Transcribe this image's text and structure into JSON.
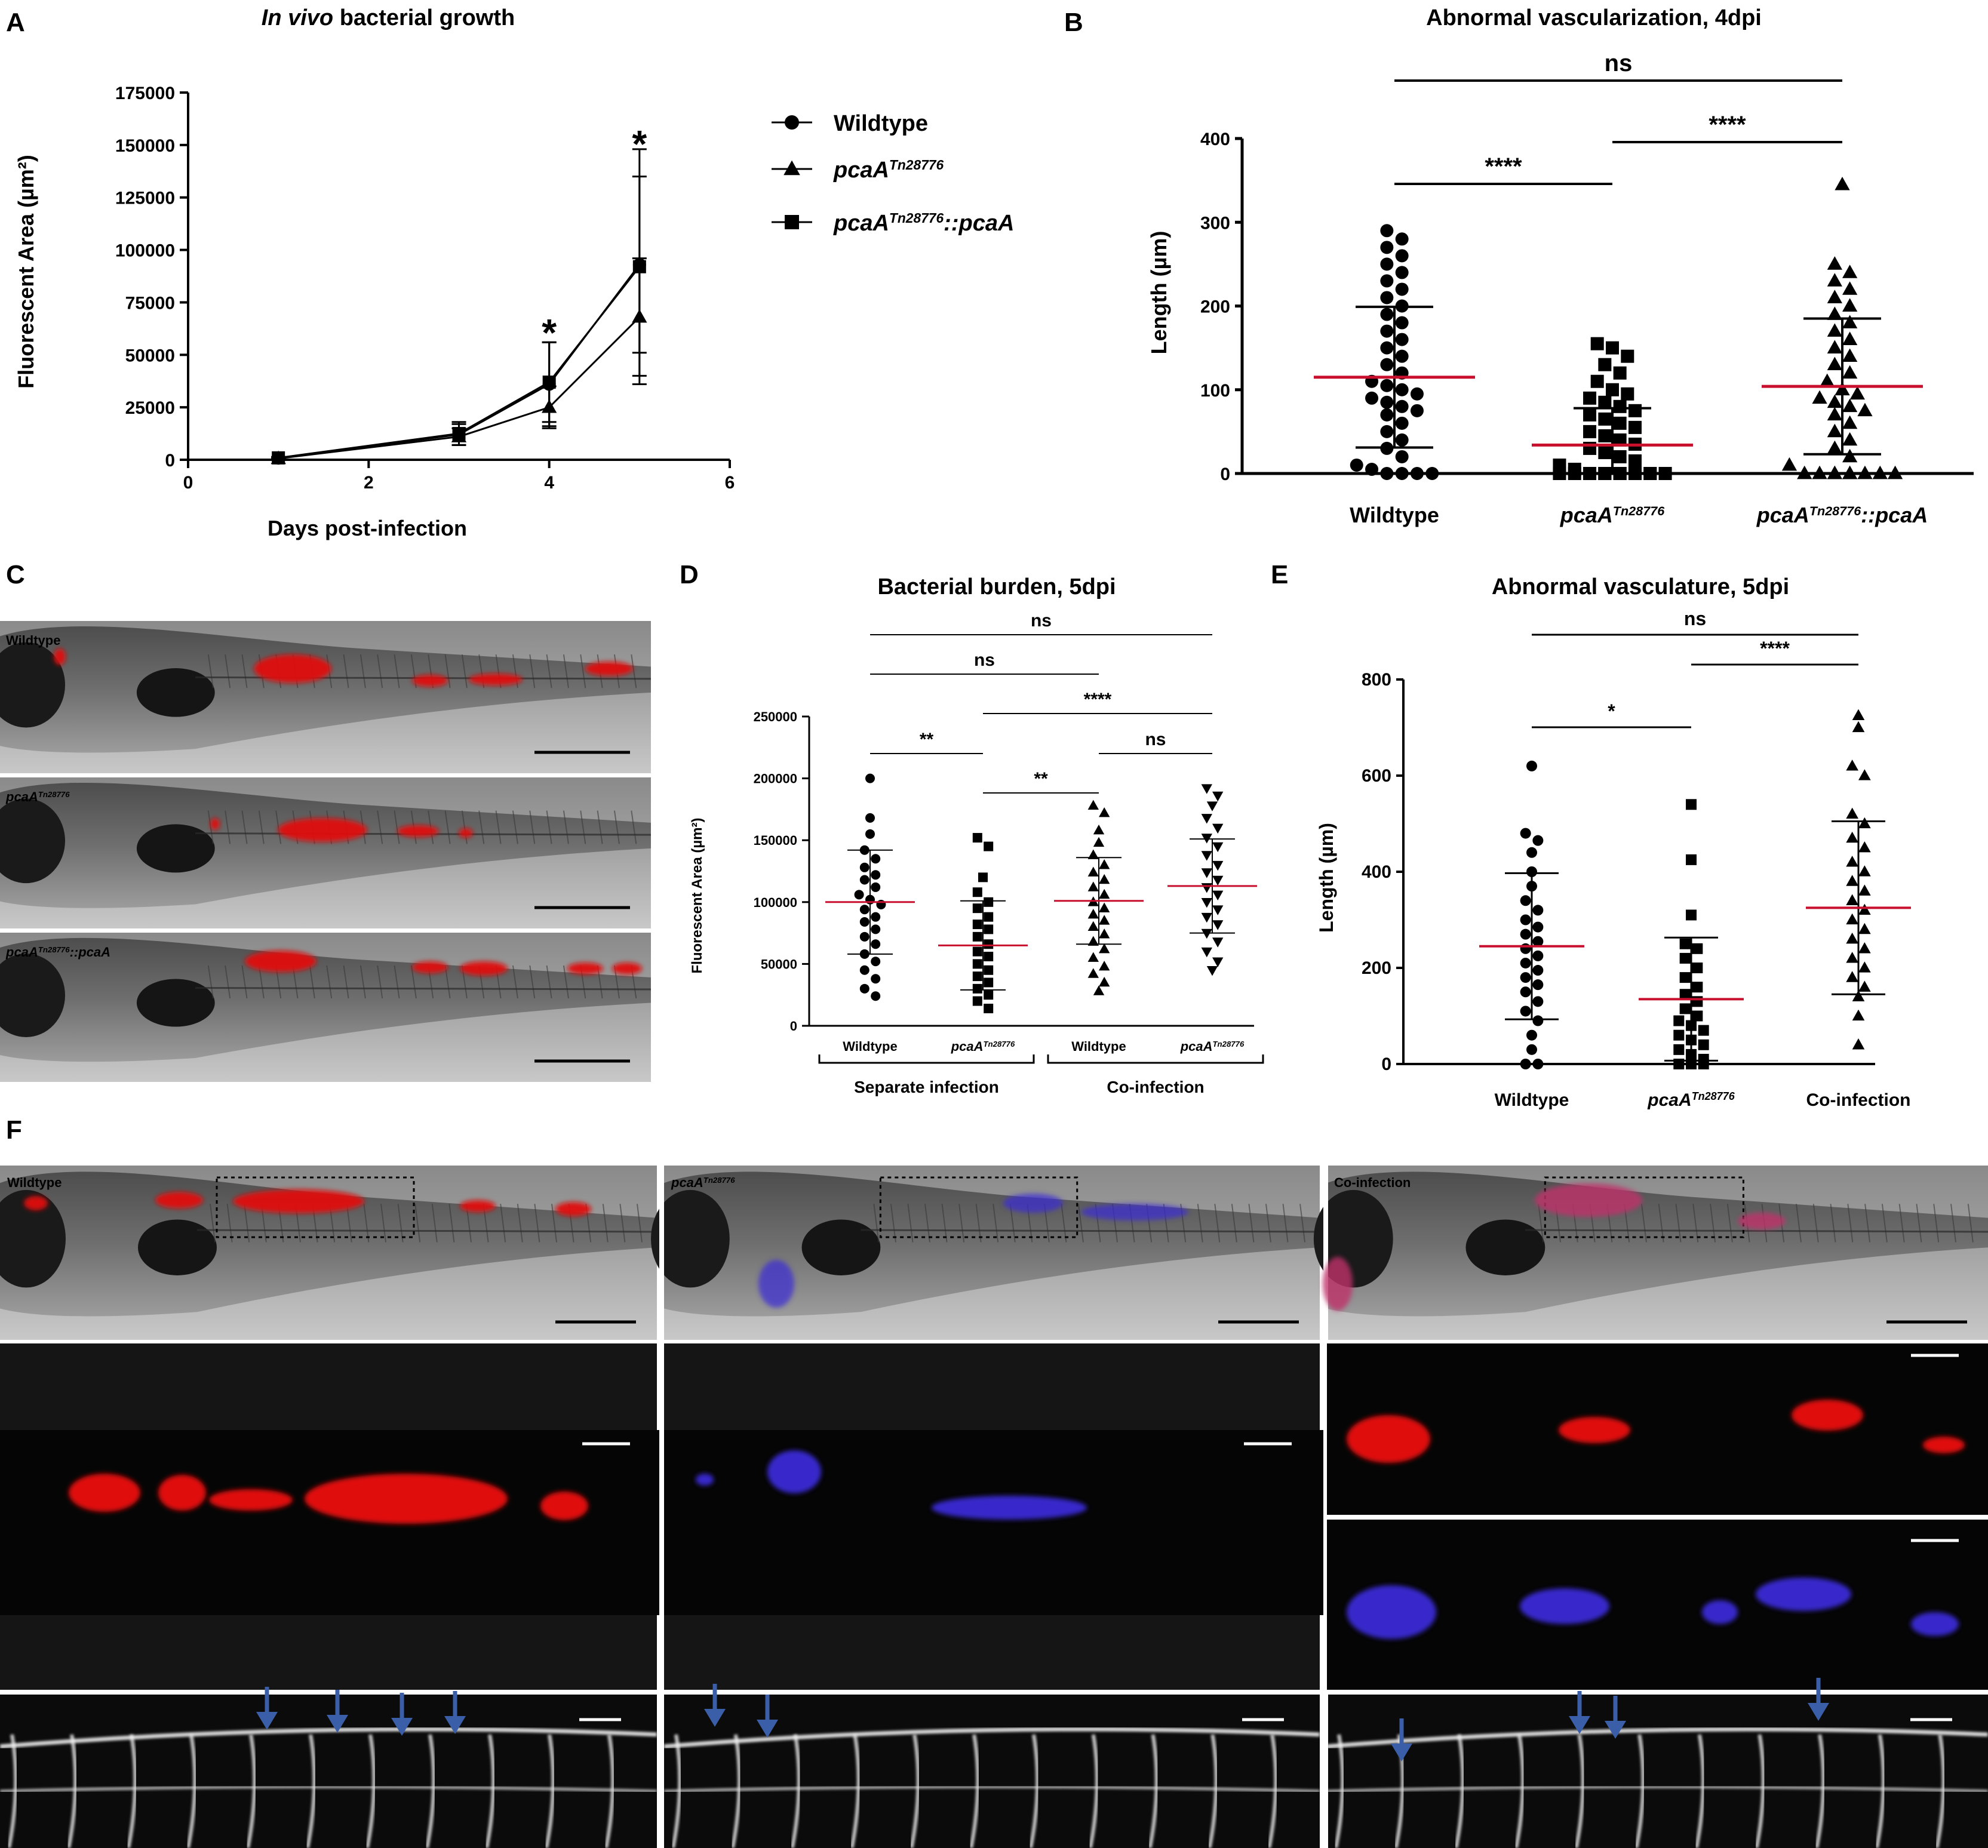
{
  "panel_labels": {
    "A": "A",
    "B": "B",
    "C": "C",
    "D": "D",
    "E": "E",
    "F": "F"
  },
  "colors": {
    "mean_line": "#c8102e",
    "red_fluor": "#e01010",
    "blue_fluor": "#3a2bd6",
    "vessel": "#ffffff",
    "arrow": "#3a5fa8"
  },
  "chart_data": [
    {
      "id": "A",
      "type": "line",
      "title": {
        "italic": "In vivo",
        "rest": " bacterial growth"
      },
      "xlabel": "Days post-infection",
      "ylabel": "Fluorescent Area (µm²)",
      "xlim": [
        0,
        6
      ],
      "ylim": [
        0,
        175000
      ],
      "xticks": [
        0,
        2,
        4,
        6
      ],
      "yticks": [
        0,
        25000,
        50000,
        75000,
        100000,
        125000,
        150000,
        175000
      ],
      "ytick_labels": [
        "0",
        "25000",
        "50000",
        "75000",
        "100000",
        "125000",
        "150000",
        "175000"
      ],
      "series": [
        {
          "name": "Wildtype",
          "marker": "circle",
          "x": [
            1,
            3,
            4,
            5
          ],
          "y": [
            800,
            12000,
            36000,
            93000
          ],
          "err": [
            500,
            5000,
            20000,
            42000
          ]
        },
        {
          "name": {
            "base": "pcaA",
            "sup": "Tn28776"
          },
          "marker": "triangle",
          "x": [
            1,
            3,
            4,
            5
          ],
          "y": [
            600,
            11000,
            25000,
            68000
          ],
          "err": [
            400,
            4000,
            10000,
            28000
          ]
        },
        {
          "name": {
            "base": "pcaA",
            "sup": "Tn28776",
            "suffix": "::pcaA"
          },
          "marker": "square",
          "x": [
            1,
            3,
            4,
            5
          ],
          "y": [
            900,
            12500,
            37000,
            92000
          ],
          "err": [
            500,
            5500,
            19000,
            56000
          ]
        }
      ],
      "annotations": [
        {
          "text": "*",
          "x": 4,
          "y": 60000
        },
        {
          "text": "*",
          "x": 5,
          "y": 150000
        }
      ]
    },
    {
      "id": "B",
      "type": "scatter",
      "title": "Abnormal vascularization, 4dpi",
      "ylabel": "Length (µm)",
      "ylim": [
        0,
        400
      ],
      "yticks": [
        0,
        100,
        200,
        300,
        400
      ],
      "ytick_labels": [
        "0",
        "100",
        "200",
        "300",
        "400"
      ],
      "categories": [
        "Wildtype",
        {
          "base": "pcaA",
          "sup": "Tn28776"
        },
        {
          "base": "pcaA",
          "sup": "Tn28776",
          "suffix": "::pcaA"
        }
      ],
      "markers": [
        "circle",
        "square",
        "triangle"
      ],
      "groups": [
        {
          "mean": 115,
          "sd": 84,
          "values": [
            290,
            280,
            270,
            260,
            250,
            240,
            230,
            220,
            210,
            200,
            190,
            180,
            170,
            160,
            150,
            140,
            130,
            120,
            110,
            105,
            100,
            95,
            90,
            85,
            80,
            75,
            70,
            60,
            50,
            40,
            30,
            20,
            10,
            5,
            0,
            0,
            0,
            0
          ]
        },
        {
          "mean": 34,
          "sd": 44,
          "values": [
            155,
            150,
            140,
            130,
            120,
            110,
            100,
            95,
            90,
            85,
            80,
            75,
            70,
            65,
            60,
            55,
            50,
            45,
            40,
            35,
            30,
            25,
            20,
            15,
            10,
            5,
            0,
            0,
            0,
            0,
            0,
            0,
            0,
            0,
            0,
            0,
            0,
            0,
            0,
            0,
            0,
            0
          ]
        },
        {
          "mean": 104,
          "sd": 81,
          "values": [
            345,
            250,
            240,
            230,
            220,
            210,
            200,
            190,
            180,
            170,
            160,
            150,
            140,
            130,
            120,
            110,
            100,
            95,
            90,
            85,
            80,
            75,
            70,
            60,
            50,
            40,
            30,
            20,
            10,
            0,
            0,
            0,
            0,
            0,
            0,
            0,
            0,
            0
          ]
        }
      ],
      "brackets": [
        {
          "from": 0,
          "to": 2,
          "label": "ns"
        },
        {
          "from": 0,
          "to": 1,
          "label": "****"
        },
        {
          "from": 1,
          "to": 2,
          "label": "****"
        }
      ]
    },
    {
      "id": "D",
      "type": "scatter",
      "title": "Bacterial burden, 5dpi",
      "ylabel": "Fluorescent Area (µm²)",
      "ylim": [
        0,
        250000
      ],
      "yticks": [
        0,
        50000,
        100000,
        150000,
        200000,
        250000
      ],
      "ytick_labels": [
        "0",
        "50000",
        "100000",
        "150000",
        "200000",
        "250000"
      ],
      "categories": [
        "Wildtype",
        {
          "base": "pcaA",
          "sup": "Tn28776"
        },
        "Wildtype",
        {
          "base": "pcaA",
          "sup": "Tn28776"
        }
      ],
      "markers": [
        "circle",
        "square",
        "triangle",
        "triangle-down"
      ],
      "groups": [
        {
          "mean": 100000,
          "sd": 42000,
          "values": [
            200000,
            168000,
            155000,
            142000,
            135000,
            128000,
            122000,
            118000,
            112000,
            106000,
            102000,
            98000,
            94000,
            88000,
            84000,
            78000,
            72000,
            66000,
            58000,
            52000,
            45000,
            38000,
            30000,
            24000
          ]
        },
        {
          "mean": 65000,
          "sd": 36000,
          "values": [
            152000,
            145000,
            120000,
            108000,
            100000,
            95000,
            88000,
            82000,
            78000,
            72000,
            66000,
            60000,
            56000,
            50000,
            45000,
            40000,
            35000,
            30000,
            25000,
            20000,
            14000
          ]
        },
        {
          "mean": 101000,
          "sd": 35000,
          "values": [
            178000,
            172000,
            158000,
            148000,
            138000,
            130000,
            124000,
            118000,
            112000,
            106000,
            100000,
            95000,
            90000,
            85000,
            80000,
            74000,
            68000,
            62000,
            55000,
            48000,
            42000,
            35000,
            28000
          ]
        },
        {
          "mean": 113000,
          "sd": 38000,
          "values": [
            192000,
            186000,
            178000,
            168000,
            160000,
            152000,
            145000,
            138000,
            130000,
            124000,
            118000,
            112000,
            106000,
            100000,
            94000,
            88000,
            82000,
            75000,
            68000,
            60000,
            52000,
            45000
          ]
        }
      ],
      "brackets": [
        {
          "from": 0,
          "to": 3,
          "label": "ns"
        },
        {
          "from": 0,
          "to": 2,
          "label": "ns"
        },
        {
          "from": 1,
          "to": 3,
          "label": "****"
        },
        {
          "from": 0,
          "to": 1,
          "label": "**"
        },
        {
          "from": 2,
          "to": 3,
          "label": "ns"
        },
        {
          "from": 1,
          "to": 2,
          "label": "**"
        }
      ],
      "group_labels": [
        {
          "from": 0,
          "to": 1,
          "label": "Separate infection"
        },
        {
          "from": 2,
          "to": 3,
          "label": "Co-infection"
        }
      ]
    },
    {
      "id": "E",
      "type": "scatter",
      "title": "Abnormal vasculature, 5dpi",
      "ylabel": "Length (µm)",
      "ylim": [
        0,
        800
      ],
      "yticks": [
        0,
        200,
        400,
        600,
        800
      ],
      "ytick_labels": [
        "0",
        "200",
        "400",
        "600",
        "800"
      ],
      "categories": [
        "Wildtype",
        {
          "base": "pcaA",
          "sup": "Tn28776"
        },
        "Co-infection"
      ],
      "markers": [
        "circle",
        "square",
        "triangle"
      ],
      "groups": [
        {
          "mean": 245,
          "sd": 152,
          "values": [
            620,
            480,
            465,
            440,
            400,
            370,
            340,
            320,
            300,
            285,
            270,
            255,
            240,
            225,
            210,
            195,
            180,
            165,
            150,
            130,
            110,
            90,
            60,
            30,
            0,
            0
          ]
        },
        {
          "mean": 135,
          "sd": 128,
          "values": [
            540,
            425,
            310,
            250,
            240,
            220,
            200,
            180,
            160,
            145,
            130,
            115,
            100,
            90,
            80,
            70,
            60,
            50,
            40,
            30,
            20,
            10,
            0,
            0,
            0
          ]
        },
        {
          "mean": 325,
          "sd": 180,
          "values": [
            725,
            700,
            620,
            600,
            520,
            500,
            470,
            450,
            420,
            400,
            380,
            360,
            340,
            320,
            300,
            280,
            260,
            240,
            220,
            200,
            180,
            160,
            140,
            100,
            40
          ]
        }
      ],
      "brackets": [
        {
          "from": 0,
          "to": 2,
          "label": "ns"
        },
        {
          "from": 1,
          "to": 2,
          "label": "****"
        },
        {
          "from": 0,
          "to": 1,
          "label": "*"
        }
      ]
    }
  ],
  "panel_c": {
    "labels": [
      "Wildtype",
      {
        "base": "pcaA",
        "sup": "Tn28776"
      },
      {
        "base": "pcaA",
        "sup": "Tn28776",
        "suffix": "::pcaA"
      }
    ]
  },
  "panel_f": {
    "columns": [
      "Wildtype",
      {
        "base": "pcaA",
        "sup": "Tn28776"
      },
      "Co-infection"
    ]
  }
}
